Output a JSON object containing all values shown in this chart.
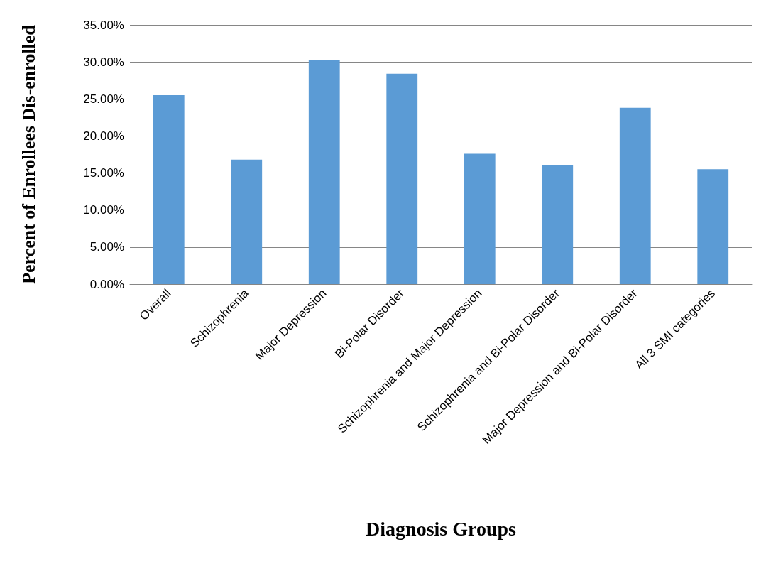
{
  "chart_data": {
    "type": "bar",
    "xlabel": "Diagnosis Groups",
    "ylabel": "Percent of Enrollees Dis-enrolled",
    "categories": [
      "Overall",
      "Schizophrenia",
      "Major Depression",
      "Bi-Polar Disorder",
      "Schizophrenia and Major Depression",
      "Schizophrenia and Bi-Polar Disorder",
      "Major Depression and Bi-Polar Disorder",
      "All 3 SMI categories"
    ],
    "values": [
      25.5,
      16.8,
      30.3,
      28.4,
      17.6,
      16.1,
      23.8,
      15.5
    ],
    "color": "#5b9bd5",
    "ylim": [
      0,
      35
    ],
    "yticks": [
      {
        "value": 0,
        "label": "0.00%"
      },
      {
        "value": 5,
        "label": "5.00%"
      },
      {
        "value": 10,
        "label": "10.00%"
      },
      {
        "value": 15,
        "label": "15.00%"
      },
      {
        "value": 20,
        "label": "20.00%"
      },
      {
        "value": 25,
        "label": "25.00%"
      },
      {
        "value": 30,
        "label": "30.00%"
      },
      {
        "value": 35,
        "label": "35.00%"
      }
    ],
    "grid": "y"
  }
}
